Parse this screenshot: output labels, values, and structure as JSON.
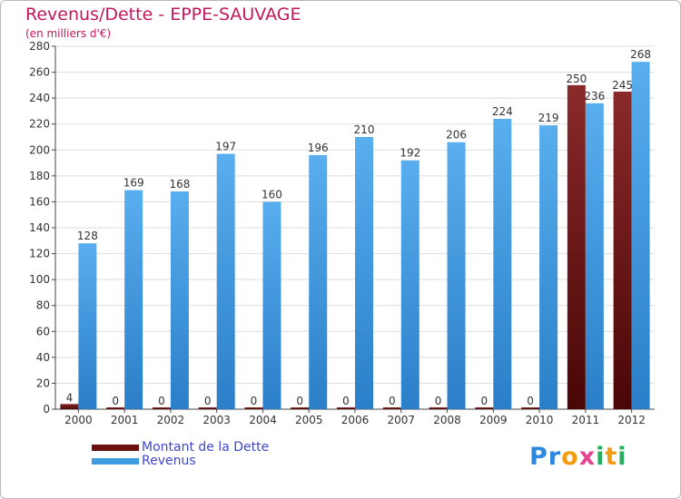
{
  "chart_data": {
    "type": "bar",
    "title": "Revenus/Dette - EPPE-SAUVAGE",
    "subtitle": "(en milliers d'€)",
    "categories": [
      "2000",
      "2001",
      "2002",
      "2003",
      "2004",
      "2005",
      "2006",
      "2007",
      "2008",
      "2009",
      "2010",
      "2011",
      "2012"
    ],
    "series": [
      {
        "name": "Montant de la Dette",
        "color": "#7a1212",
        "values": [
          4,
          0,
          0,
          0,
          0,
          0,
          0,
          0,
          0,
          0,
          0,
          250,
          245
        ]
      },
      {
        "name": "Revenus",
        "color": "#3d9be0",
        "values": [
          128,
          169,
          168,
          197,
          160,
          196,
          210,
          192,
          206,
          224,
          219,
          236,
          268
        ]
      }
    ],
    "ylim": [
      0,
      280
    ],
    "yticks": [
      0,
      20,
      40,
      60,
      80,
      100,
      120,
      140,
      160,
      180,
      200,
      220,
      240,
      260,
      280
    ],
    "grid": true,
    "legend_position": "bottom-left"
  },
  "logo": {
    "letters": [
      "P",
      "r",
      "o",
      "x",
      "i",
      "t",
      "i"
    ],
    "colors": [
      "#2e86de",
      "#2e86de",
      "#f39c12",
      "#e84393",
      "#27ae60",
      "#f39c12",
      "#27ae60"
    ]
  }
}
